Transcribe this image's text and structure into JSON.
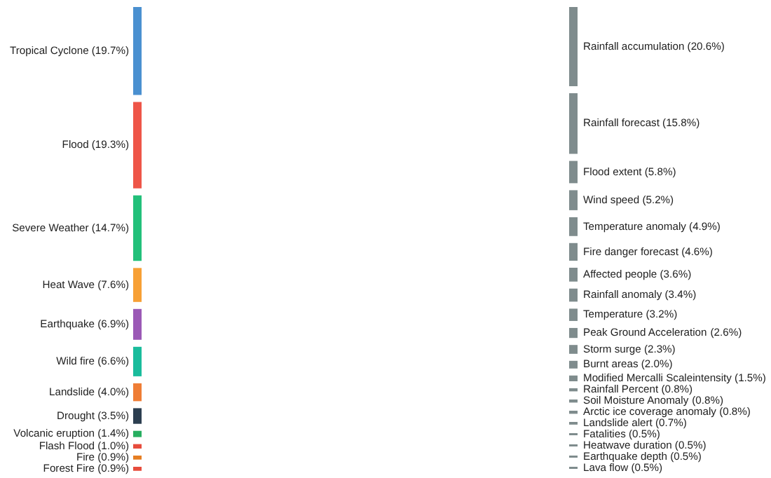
{
  "chart_data": {
    "type": "other",
    "categories": [
      "Tropical Cyclone",
      "Flood",
      "Severe Weather",
      "Heat Wave",
      "Earthquake",
      "Wild fire",
      "Landslide",
      "Drought",
      "Volcanic eruption",
      "Flash Flood",
      "Fire",
      "Forest Fire",
      "Rainfall accumulation",
      "Rainfall forecast",
      "Flood extent",
      "Wind speed",
      "Temperature anomaly",
      "Fire danger forecast",
      "Affected people",
      "Rainfall anomaly",
      "Temperature",
      "Peak Ground Acceleration",
      "Storm surge",
      "Burnt areas",
      "Modified Mercalli Scaleintensity",
      "Rainfall Percent",
      "Soil Moisture Anomaly",
      "Arctic ice coverage anomaly",
      "Landslide alert",
      "Fatalities",
      "Heatwave duration",
      "Earthquake depth",
      "Lava flow"
    ],
    "series": [
      {
        "values": [
          19.7,
          19.3,
          14.7,
          7.6,
          6.9,
          6.6,
          4.0,
          3.5,
          1.4,
          1.0,
          0.9,
          0.9,
          null,
          null,
          null,
          null,
          null,
          null,
          null,
          null,
          null,
          null,
          null,
          null,
          null,
          null,
          null,
          null,
          null,
          null,
          null,
          null,
          null
        ],
        "value_labels": [
          "(19.7%)",
          "(19.3%)",
          "(14.7%)",
          "(7.6%)",
          "(6.9%)",
          "(6.6%)",
          "(4.0%)",
          "(3.5%)",
          "(1.4%)",
          "(1.0%)",
          "(0.9%)",
          "(0.9%)",
          null,
          null,
          null,
          null,
          null,
          null,
          null,
          null,
          null,
          null,
          null,
          null,
          null,
          null,
          null,
          null,
          null,
          null,
          null,
          null,
          null
        ],
        "colors": [
          "#4a90d0",
          "#ee5548",
          "#22c07a",
          "#f7a035",
          "#9b59b6",
          "#1abc9c",
          "#ef7d35",
          "#2c3e50",
          "#27ae60",
          "#e74c3c",
          "#e67e22",
          "#e74c3c",
          null,
          null,
          null,
          null,
          null,
          null,
          null,
          null,
          null,
          null,
          null,
          null,
          null,
          null,
          null,
          null,
          null,
          null,
          null,
          null,
          null
        ]
      },
      {
        "values": [
          null,
          null,
          null,
          null,
          null,
          null,
          null,
          null,
          null,
          null,
          null,
          null,
          20.6,
          15.8,
          5.8,
          5.2,
          4.9,
          4.6,
          3.6,
          3.4,
          3.2,
          2.6,
          2.3,
          2.0,
          1.5,
          0.8,
          0.8,
          0.8,
          0.7,
          0.5,
          0.5,
          0.5,
          0.5
        ],
        "value_labels": [
          null,
          null,
          null,
          null,
          null,
          null,
          null,
          null,
          null,
          null,
          null,
          null,
          "(20.6%)",
          "(15.8%)",
          "(5.8%)",
          "(5.2%)",
          "(4.9%)",
          "(4.6%)",
          "(3.6%)",
          "(3.4%)",
          "(3.2%)",
          "(2.6%)",
          "(2.3%)",
          "(2.0%)",
          "(1.5%)",
          "(0.8%)",
          "(0.8%)",
          "(0.8%)",
          "(0.7%)",
          "(0.5%)",
          "(0.5%)",
          "(0.5%)",
          "(0.5%)"
        ],
        "color": "#7f8c8d"
      }
    ]
  }
}
